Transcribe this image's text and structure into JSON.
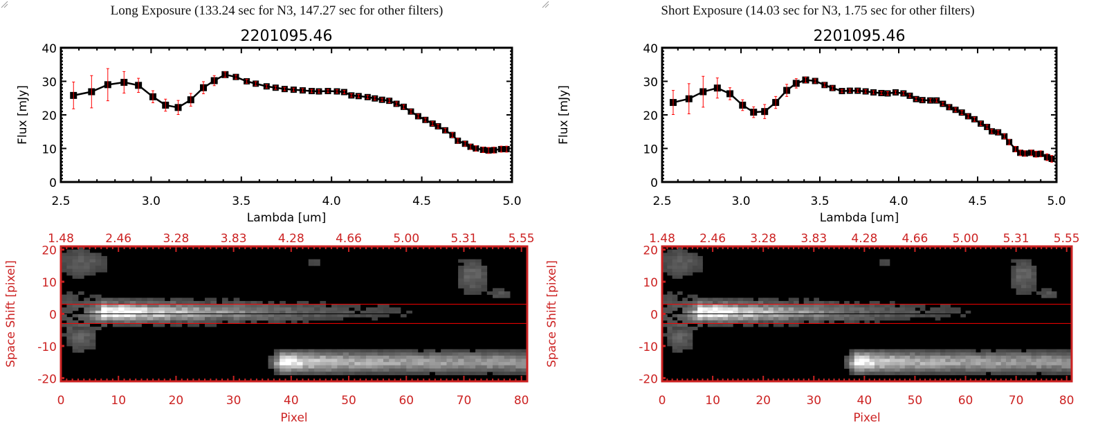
{
  "colors": {
    "axis": "#000000",
    "error": "#ff0000",
    "image_axis": "#cc2222",
    "aperture_line": "#ff0000"
  },
  "panels": [
    {
      "header": "Long Exposure (133.24 sec for N3, 147.27 sec for other filters)",
      "chart_data": {
        "type": "line",
        "title": "2201095.46",
        "xlabel": "Lambda [um]",
        "ylabel": "Flux [mJy]",
        "xlim": [
          2.5,
          5.0
        ],
        "ylim": [
          0,
          40
        ],
        "xticks": [
          "2.5",
          "3.0",
          "3.5",
          "4.0",
          "4.5",
          "5.0"
        ],
        "yticks": [
          "0",
          "10",
          "20",
          "30",
          "40"
        ],
        "x": [
          2.57,
          2.67,
          2.76,
          2.85,
          2.93,
          3.01,
          3.08,
          3.15,
          3.22,
          3.29,
          3.35,
          3.41,
          3.47,
          3.53,
          3.58,
          3.64,
          3.69,
          3.74,
          3.79,
          3.84,
          3.89,
          3.93,
          3.98,
          4.03,
          4.07,
          4.11,
          4.15,
          4.2,
          4.24,
          4.28,
          4.32,
          4.36,
          4.4,
          4.44,
          4.48,
          4.52,
          4.56,
          4.59,
          4.63,
          4.67,
          4.7,
          4.74,
          4.77,
          4.8,
          4.84,
          4.87,
          4.9,
          4.94,
          4.97
        ],
        "y": [
          25.8,
          26.9,
          29.0,
          29.7,
          28.8,
          25.4,
          22.9,
          22.2,
          24.5,
          28.1,
          30.2,
          32.0,
          31.3,
          30.0,
          29.3,
          28.5,
          28.1,
          27.7,
          27.5,
          27.3,
          27.1,
          27.0,
          27.1,
          27.0,
          26.8,
          25.8,
          25.6,
          25.3,
          24.9,
          24.5,
          24.2,
          23.3,
          22.4,
          21.0,
          19.6,
          18.5,
          17.4,
          16.6,
          15.4,
          14.0,
          12.3,
          11.4,
          10.5,
          10.0,
          9.6,
          9.4,
          9.5,
          9.8,
          9.8
        ],
        "yerr": [
          4.0,
          4.8,
          4.8,
          3.2,
          2.1,
          1.8,
          1.8,
          2.1,
          1.9,
          1.8,
          1.5,
          0.8,
          0.6,
          0.6,
          0.6,
          0.5,
          0.5,
          0.5,
          0.5,
          0.5,
          0.5,
          0.5,
          0.5,
          0.5,
          0.5,
          0.5,
          0.5,
          0.5,
          0.5,
          0.5,
          0.6,
          0.6,
          0.6,
          0.6,
          0.6,
          0.6,
          0.6,
          0.6,
          0.6,
          0.7,
          0.7,
          0.7,
          0.8,
          0.8,
          0.8,
          0.9,
          0.9,
          0.9,
          0.9
        ]
      },
      "image": {
        "xlabel": "Pixel",
        "ylabel": "Space Shift [pixel]",
        "xlim": [
          0,
          81
        ],
        "ylim": [
          -21,
          21
        ],
        "xticks": [
          "0",
          "10",
          "20",
          "30",
          "40",
          "50",
          "60",
          "70",
          "80"
        ],
        "yticks": [
          "-20",
          "-10",
          "0",
          "10",
          "20"
        ],
        "top_ticks": [
          "1.48",
          "2.46",
          "3.28",
          "3.83",
          "4.28",
          "4.66",
          "5.00",
          "5.31",
          "5.55"
        ],
        "aperture": [
          -3,
          3
        ]
      }
    },
    {
      "header": "Short Exposure (14.03 sec for N3, 1.75 sec for other filters)",
      "chart_data": {
        "type": "line",
        "title": "2201095.46",
        "xlabel": "Lambda [um]",
        "ylabel": "Flux [mJy]",
        "xlim": [
          2.5,
          5.0
        ],
        "ylim": [
          0,
          40
        ],
        "xticks": [
          "2.5",
          "3.0",
          "3.5",
          "4.0",
          "4.5",
          "5.0"
        ],
        "yticks": [
          "0",
          "10",
          "20",
          "30",
          "40"
        ],
        "x": [
          2.57,
          2.67,
          2.76,
          2.85,
          2.93,
          3.01,
          3.08,
          3.15,
          3.22,
          3.29,
          3.35,
          3.41,
          3.47,
          3.53,
          3.58,
          3.64,
          3.69,
          3.74,
          3.79,
          3.84,
          3.89,
          3.93,
          3.98,
          4.03,
          4.07,
          4.11,
          4.15,
          4.2,
          4.24,
          4.28,
          4.32,
          4.36,
          4.4,
          4.44,
          4.48,
          4.52,
          4.56,
          4.59,
          4.63,
          4.67,
          4.7,
          4.74,
          4.77,
          4.8,
          4.84,
          4.87,
          4.9,
          4.94,
          4.97
        ],
        "y": [
          23.7,
          24.8,
          26.9,
          28.0,
          26.3,
          22.9,
          20.8,
          21.0,
          23.7,
          27.3,
          29.4,
          30.4,
          30.1,
          28.9,
          28.0,
          27.1,
          27.2,
          27.2,
          27.0,
          26.7,
          26.5,
          26.4,
          26.7,
          26.4,
          25.7,
          24.7,
          24.4,
          24.3,
          24.3,
          23.3,
          22.3,
          21.5,
          20.7,
          19.6,
          18.7,
          17.4,
          16.4,
          15.1,
          14.8,
          13.6,
          11.9,
          9.8,
          8.7,
          8.5,
          8.7,
          8.3,
          8.4,
          7.4,
          6.9
        ],
        "yerr": [
          3.6,
          4.5,
          4.6,
          3.0,
          1.8,
          1.6,
          1.6,
          2.1,
          1.8,
          1.8,
          1.4,
          0.8,
          0.6,
          0.6,
          0.6,
          0.5,
          0.5,
          0.5,
          0.5,
          0.5,
          0.5,
          0.5,
          0.5,
          0.5,
          0.5,
          0.5,
          0.5,
          0.5,
          0.5,
          0.5,
          0.6,
          0.6,
          0.6,
          0.6,
          0.6,
          0.6,
          0.6,
          0.6,
          0.6,
          0.7,
          0.8,
          0.8,
          0.8,
          0.8,
          0.8,
          0.9,
          0.9,
          1.0,
          1.0
        ]
      },
      "image": {
        "xlabel": "Pixel",
        "ylabel": "Space Shift [pixel]",
        "xlim": [
          0,
          81
        ],
        "ylim": [
          -21,
          21
        ],
        "xticks": [
          "0",
          "10",
          "20",
          "30",
          "40",
          "50",
          "60",
          "70",
          "80"
        ],
        "yticks": [
          "-20",
          "-10",
          "0",
          "10",
          "20"
        ],
        "top_ticks": [
          "1.48",
          "2.46",
          "3.28",
          "3.83",
          "4.28",
          "4.66",
          "5.00",
          "5.31",
          "5.55"
        ],
        "aperture": [
          -3,
          3
        ]
      }
    }
  ]
}
